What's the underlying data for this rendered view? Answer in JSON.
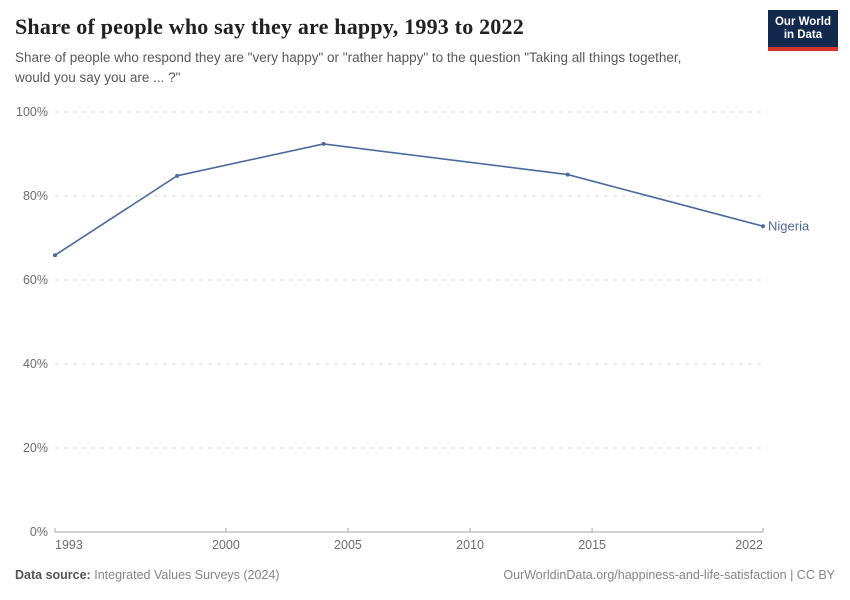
{
  "header": {
    "title": "Share of people who say they are happy, 1993 to 2022",
    "subtitle": "Share of people who respond they are \"very happy\" or \"rather happy\" to the question \"Taking all things together, would you say you are ... ?\""
  },
  "logo": {
    "line1": "Our World",
    "line2": "in Data",
    "bg_color": "#12294D",
    "accent_color": "#D0342C"
  },
  "chart_data": {
    "type": "line",
    "title": "Share of people who say they are happy, 1993 to 2022",
    "series": [
      {
        "name": "Nigeria",
        "x": [
          1993,
          1998,
          2004,
          2014,
          2022
        ],
        "values": [
          65.9,
          84.8,
          92.4,
          85.1,
          72.8
        ],
        "color": "#4C6A9C"
      }
    ],
    "entity_label": "Nigeria",
    "xlabel": "",
    "ylabel": "",
    "xlim": [
      1993,
      2022
    ],
    "ylim": [
      0,
      100
    ],
    "x_ticks": [
      1993,
      2000,
      2005,
      2010,
      2015,
      2022
    ],
    "y_ticks": [
      0,
      20,
      40,
      60,
      80,
      100
    ],
    "y_tick_suffix": "%",
    "grid": "horizontal-dashed",
    "legend_position": "end-of-line-label"
  },
  "footer": {
    "datasource_label": "Data source:",
    "datasource_value": "Integrated Values Surveys (2024)",
    "link": "OurWorldinData.org/happiness-and-life-satisfaction | CC BY"
  },
  "colors": {
    "line": "#4C6A9C",
    "grid": "#DDDDDD",
    "axis": "#A5A5A5",
    "tick_text": "#6E6E6E",
    "title_text": "#222222",
    "subtitle_text": "#595959",
    "footer_label": "#555555",
    "footer_text": "#858585"
  }
}
